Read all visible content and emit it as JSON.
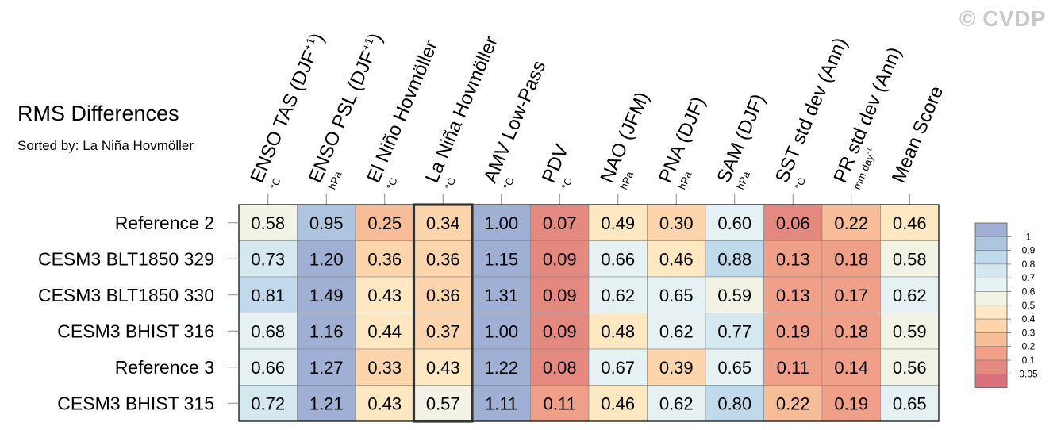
{
  "watermark": "© CVDP",
  "chart_data": {
    "type": "heatmap",
    "title": "RMS Differences",
    "subtitle": "Sorted by: La Niña Hovmöller",
    "columns": [
      {
        "label": "ENSO TAS (DJF",
        "sup": "+1",
        "close": ")",
        "unit": "°C"
      },
      {
        "label": "ENSO PSL (DJF",
        "sup": "+1",
        "close": ")",
        "unit": "hPa"
      },
      {
        "label": "El Niño Hovmöller",
        "sup": "",
        "close": "",
        "unit": "°C"
      },
      {
        "label": "La Niña Hovmöller",
        "sup": "",
        "close": "",
        "unit": "°C"
      },
      {
        "label": "AMV Low-Pass",
        "sup": "",
        "close": "",
        "unit": "°C"
      },
      {
        "label": "PDV",
        "sup": "",
        "close": "",
        "unit": "°C"
      },
      {
        "label": "NAO (JFM)",
        "sup": "",
        "close": "",
        "unit": "hPa"
      },
      {
        "label": "PNA (DJF)",
        "sup": "",
        "close": "",
        "unit": "hPa"
      },
      {
        "label": "SAM (DJF)",
        "sup": "",
        "close": "",
        "unit": "hPa"
      },
      {
        "label": "SST std dev (Ann)",
        "sup": "",
        "close": "",
        "unit": "°C"
      },
      {
        "label": "PR std dev (Ann)",
        "sup": "",
        "close": "",
        "unit": "mm day",
        "unit_sup": "-1"
      },
      {
        "label": "Mean Score",
        "sup": "",
        "close": "",
        "unit": ""
      }
    ],
    "highlight_column": 3,
    "rows": [
      {
        "name": "Reference 2",
        "values": [
          "0.58",
          "0.95",
          "0.25",
          "0.34",
          "1.00",
          "0.07",
          "0.49",
          "0.30",
          "0.60",
          "0.06",
          "0.22",
          "0.46"
        ]
      },
      {
        "name": "CESM3 BLT1850 329",
        "values": [
          "0.73",
          "1.20",
          "0.36",
          "0.36",
          "1.15",
          "0.09",
          "0.66",
          "0.46",
          "0.88",
          "0.13",
          "0.18",
          "0.58"
        ]
      },
      {
        "name": "CESM3 BLT1850 330",
        "values": [
          "0.81",
          "1.49",
          "0.43",
          "0.36",
          "1.31",
          "0.09",
          "0.62",
          "0.65",
          "0.59",
          "0.13",
          "0.17",
          "0.62"
        ]
      },
      {
        "name": "CESM3 BHIST 316",
        "values": [
          "0.68",
          "1.16",
          "0.44",
          "0.37",
          "1.00",
          "0.09",
          "0.48",
          "0.62",
          "0.77",
          "0.19",
          "0.18",
          "0.59"
        ]
      },
      {
        "name": "Reference 3",
        "values": [
          "0.66",
          "1.27",
          "0.33",
          "0.43",
          "1.22",
          "0.08",
          "0.67",
          "0.39",
          "0.65",
          "0.11",
          "0.14",
          "0.56"
        ]
      },
      {
        "name": "CESM3 BHIST 315",
        "values": [
          "0.72",
          "1.21",
          "0.43",
          "0.57",
          "1.11",
          "0.11",
          "0.46",
          "0.62",
          "0.80",
          "0.22",
          "0.19",
          "0.65"
        ]
      }
    ],
    "colorbar": {
      "levels": [
        "1",
        "0.9",
        "0.8",
        "0.7",
        "0.6",
        "0.5",
        "0.4",
        "0.3",
        "0.2",
        "0.1",
        "0.05"
      ],
      "colors": [
        "#9fb0d4",
        "#adc5df",
        "#c1daeb",
        "#d5e8f0",
        "#e5f1f2",
        "#f3f3e5",
        "#fde8c2",
        "#fcd5ad",
        "#f7bc98",
        "#f0a088",
        "#e4897f",
        "#d9707d"
      ]
    }
  }
}
